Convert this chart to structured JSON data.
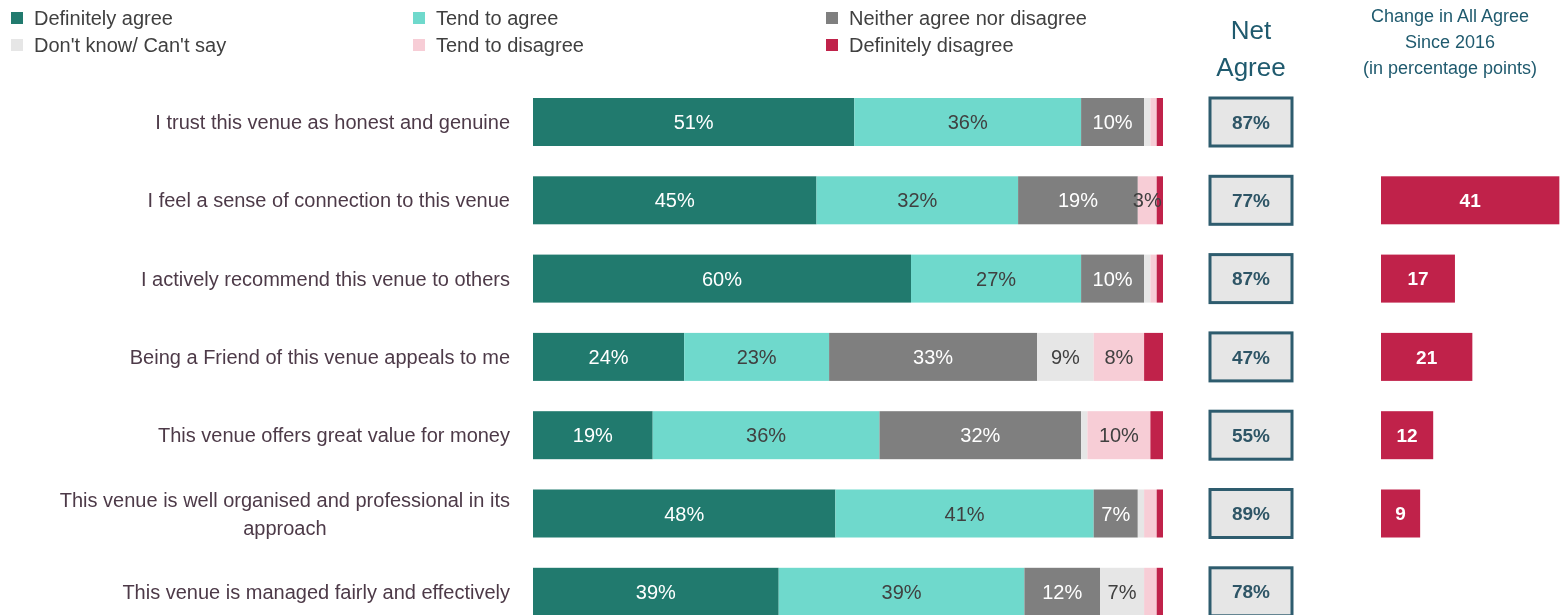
{
  "chart_data": [
    {
      "type": "bar",
      "orientation": "horizontal",
      "stacked": true,
      "legend": "top",
      "xlim": [
        0,
        100
      ],
      "tick_labels": "y",
      "categories": [
        "I trust this venue as honest and genuine",
        "I feel a sense of connection to this venue",
        "I actively recommend this venue to others",
        "Being a Friend of this venue appeals to me",
        "This venue offers great value for money",
        "This venue is well organised and professional in its approach",
        "This venue is managed fairly and effectively"
      ],
      "series": [
        {
          "name": "Definitely agree",
          "color": "#217a6e",
          "values": [
            51,
            45,
            60,
            24,
            19,
            48,
            39
          ],
          "value_labels": [
            "51%",
            "45%",
            "60%",
            "24%",
            "19%",
            "48%",
            "39%"
          ]
        },
        {
          "name": "Tend to agree",
          "color": "#6fd9cc",
          "values": [
            36,
            32,
            27,
            23,
            36,
            41,
            39
          ],
          "value_labels": [
            "36%",
            "32%",
            "27%",
            "23%",
            "36%",
            "41%",
            "39%"
          ]
        },
        {
          "name": "Neither agree nor disagree",
          "color": "#7f7f7f",
          "values": [
            10,
            19,
            10,
            33,
            32,
            7,
            12
          ],
          "value_labels": [
            "10%",
            "19%",
            "10%",
            "33%",
            "32%",
            "7%",
            "12%"
          ]
        },
        {
          "name": "Don't know/ Can't say",
          "color": "#e6e6e6",
          "values": [
            1,
            null,
            1,
            9,
            1,
            1,
            7
          ],
          "value_labels": [
            null,
            null,
            null,
            "9%",
            null,
            null,
            "7%"
          ]
        },
        {
          "name": "Tend to disagree",
          "color": "#f7cdd6",
          "values": [
            1,
            3,
            1,
            8,
            10,
            2,
            2
          ],
          "value_labels": [
            null,
            "3%",
            null,
            "8%",
            "10%",
            null,
            null
          ]
        },
        {
          "name": "Definitely disagree",
          "color": "#c0224a",
          "values": [
            1,
            1,
            1,
            3,
            2,
            1,
            1
          ],
          "value_labels": [
            null,
            null,
            null,
            null,
            null,
            null,
            null
          ]
        }
      ]
    },
    {
      "type": "other",
      "title": "Net Agree",
      "categories": [
        null,
        null,
        null,
        null,
        null,
        null,
        null
      ],
      "values": [
        87,
        77,
        87,
        47,
        55,
        89,
        78
      ],
      "value_labels": [
        "87%",
        "77%",
        "87%",
        "47%",
        "55%",
        "89%",
        "78%"
      ],
      "color": "#e6e6e6"
    },
    {
      "type": "bar",
      "orientation": "horizontal",
      "title": "Change  in All Agree Since 2016",
      "subtitle": "(in percentage points)",
      "categories": [
        null,
        null,
        null,
        null,
        null,
        null,
        null
      ],
      "values": [
        null,
        41,
        17,
        21,
        12,
        9,
        null
      ],
      "color": "#c0224a",
      "data_labels": true,
      "tick_labels": false
    }
  ]
}
